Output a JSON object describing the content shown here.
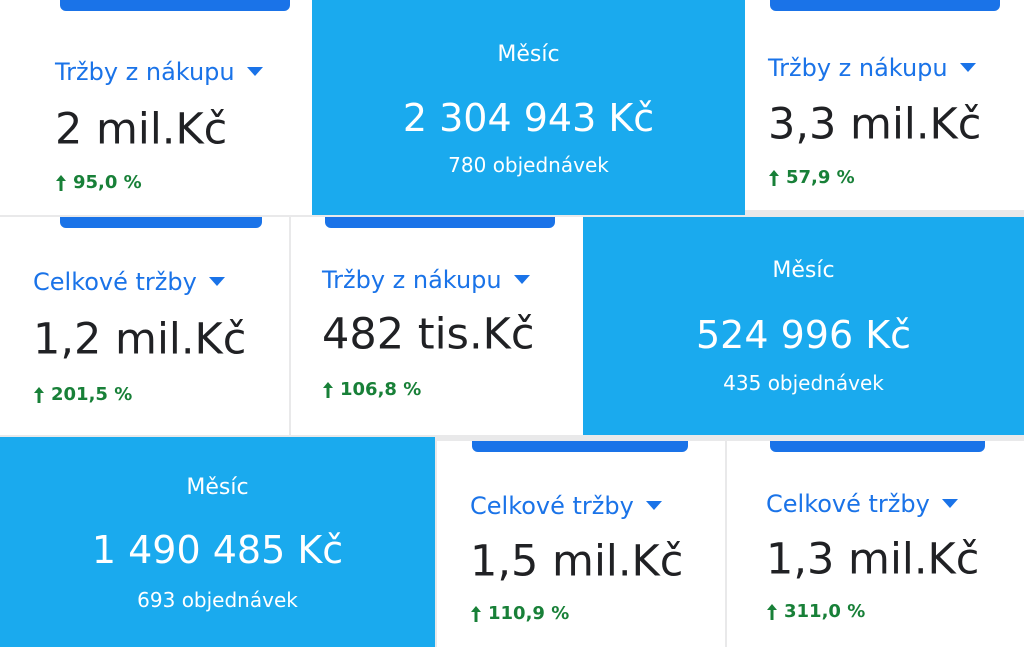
{
  "cards": [
    {
      "metric": "Tržby z nákupu",
      "value": "2 mil.Kč",
      "change": "95,0 %"
    },
    {
      "title": "Měsíc",
      "value": "2 304 943 Kč",
      "orders": "780 objednávek"
    },
    {
      "metric": "Tržby z nákupu",
      "value": "3,3 mil.Kč",
      "change": "57,9 %"
    },
    {
      "metric": "Celkové tržby",
      "value": "1,2 mil.Kč",
      "change": "201,5 %"
    },
    {
      "metric": "Tržby z nákupu",
      "value": "482 tis.Kč",
      "change": "106,8 %"
    },
    {
      "title": "Měsíc",
      "value": "524 996 Kč",
      "orders": "435 objednávek"
    },
    {
      "title": "Měsíc",
      "value": "1 490 485 Kč",
      "orders": "693 objednávek"
    },
    {
      "metric": "Celkové tržby",
      "value": "1,5 mil.Kč",
      "change": "110,9 %"
    },
    {
      "metric": "Celkové tržby",
      "value": "1,3 mil.Kč",
      "change": "311,0 %"
    }
  ]
}
